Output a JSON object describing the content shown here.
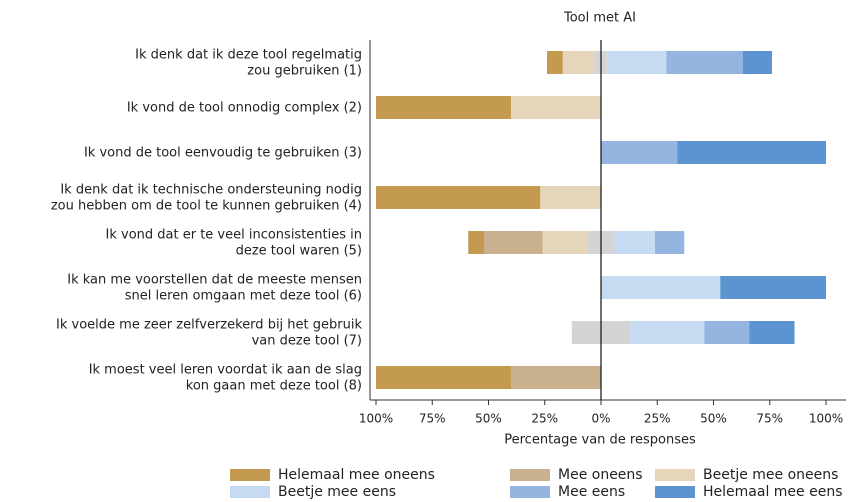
{
  "chart_data": {
    "type": "diverging_bar",
    "title": "Tool met AI",
    "xlabel": "Percentage van de responses",
    "categories": [
      "Ik denk dat ik deze tool regelmatig\nzou gebruiken (1)",
      "Ik vond de tool onnodig complex (2)",
      "Ik vond de tool eenvoudig te gebruiken (3)",
      "Ik denk dat ik technische ondersteuning nodig\nzou hebben om de tool te kunnen gebruiken (4)",
      "Ik vond dat er te veel inconsistenties in\ndeze tool waren (5)",
      "Ik kan me voorstellen dat de meeste mensen\nsnel leren omgaan met deze tool (6)",
      "Ik voelde me zeer zelfverzekerd bij het gebruik\nvan deze tool (7)",
      "Ik moest veel leren voordat ik aan de slag\nkon gaan met deze tool (8)"
    ],
    "series": [
      {
        "name": "Helemaal mee oneens",
        "color": "#c49a50",
        "side": "left",
        "values": [
          7,
          60,
          0,
          73,
          7,
          0,
          0,
          60
        ]
      },
      {
        "name": "Mee oneens",
        "color": "#c9b18f",
        "side": "left",
        "values": [
          0,
          0,
          0,
          0,
          26,
          0,
          0,
          40
        ]
      },
      {
        "name": "Beetje mee oneens",
        "color": "#e4d5bb",
        "side": "left",
        "values": [
          14,
          40,
          0,
          27,
          20,
          0,
          0,
          0
        ]
      },
      {
        "color": "#d4d4d4",
        "side": "center",
        "values": [
          6,
          0,
          0,
          0,
          12,
          0,
          26,
          0
        ]
      },
      {
        "name": "Beetje mee eens",
        "color": "#c6dbf1",
        "side": "right",
        "values": [
          26,
          0,
          0,
          0,
          18,
          53,
          33,
          0
        ]
      },
      {
        "name": "Mee eens",
        "color": "#93b5df",
        "side": "right",
        "values": [
          34,
          0,
          34,
          0,
          13,
          0,
          20,
          0
        ]
      },
      {
        "name": "Helemaal mee eens",
        "color": "#5b94d0",
        "side": "right",
        "values": [
          13,
          0,
          66,
          0,
          0,
          47,
          20,
          0
        ]
      }
    ],
    "xlim": [
      -100,
      100
    ],
    "xticks": [
      {
        "value": -100,
        "label": "100%"
      },
      {
        "value": -75,
        "label": "75%"
      },
      {
        "value": -50,
        "label": "50%"
      },
      {
        "value": -25,
        "label": "25%"
      },
      {
        "value": 0,
        "label": "0%"
      },
      {
        "value": 25,
        "label": "25%"
      },
      {
        "value": 50,
        "label": "50%"
      },
      {
        "value": 75,
        "label": "75%"
      },
      {
        "value": 100,
        "label": "100%"
      }
    ]
  }
}
